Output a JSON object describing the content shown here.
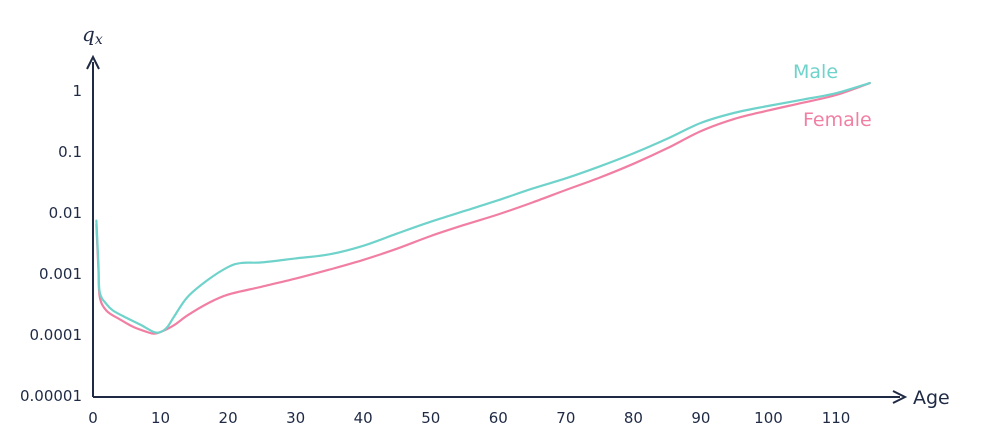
{
  "chart_data": {
    "type": "line",
    "title": "",
    "xlabel": "Age",
    "ylabel": {
      "main": "q",
      "sub": "x"
    },
    "y_scale": "log",
    "xlim": [
      0,
      115
    ],
    "ylim": [
      1e-05,
      1
    ],
    "x_ticks": [
      {
        "value": 0,
        "label": "0"
      },
      {
        "value": 10,
        "label": "10"
      },
      {
        "value": 20,
        "label": "20"
      },
      {
        "value": 30,
        "label": "30"
      },
      {
        "value": 40,
        "label": "40"
      },
      {
        "value": 50,
        "label": "50"
      },
      {
        "value": 60,
        "label": "60"
      },
      {
        "value": 70,
        "label": "70"
      },
      {
        "value": 80,
        "label": "80"
      },
      {
        "value": 90,
        "label": "90"
      },
      {
        "value": 100,
        "label": "100"
      },
      {
        "value": 110,
        "label": "110"
      }
    ],
    "y_ticks": [
      {
        "value": 1,
        "label": "1"
      },
      {
        "value": 0.1,
        "label": "0.1"
      },
      {
        "value": 0.01,
        "label": "0.01"
      },
      {
        "value": 0.001,
        "label": "0.001"
      },
      {
        "value": 0.0001,
        "label": "0.0001"
      },
      {
        "value": 1e-05,
        "label": "0.00001"
      }
    ],
    "grid": false,
    "legend": "inline labels at line ends",
    "series": [
      {
        "name": "Male",
        "color": "#6fd3cb",
        "points": [
          [
            0.5,
            0.0075
          ],
          [
            0.8,
            0.0015
          ],
          [
            1,
            0.0005
          ],
          [
            2,
            0.00032
          ],
          [
            3,
            0.00025
          ],
          [
            5,
            0.00019
          ],
          [
            7,
            0.000148
          ],
          [
            9,
            0.000112
          ],
          [
            10,
            0.000112
          ],
          [
            11,
            0.000135
          ],
          [
            12,
            0.0002
          ],
          [
            14,
            0.00042
          ],
          [
            17,
            0.0008
          ],
          [
            20,
            0.0013
          ],
          [
            22,
            0.00152
          ],
          [
            25,
            0.00155
          ],
          [
            30,
            0.0018
          ],
          [
            35,
            0.0021
          ],
          [
            40,
            0.0029
          ],
          [
            45,
            0.0046
          ],
          [
            50,
            0.0072
          ],
          [
            55,
            0.0108
          ],
          [
            60,
            0.0162
          ],
          [
            65,
            0.025
          ],
          [
            70,
            0.037
          ],
          [
            75,
            0.058
          ],
          [
            80,
            0.095
          ],
          [
            85,
            0.165
          ],
          [
            90,
            0.3
          ],
          [
            95,
            0.44
          ],
          [
            100,
            0.57
          ],
          [
            105,
            0.72
          ],
          [
            110,
            0.92
          ],
          [
            115,
            1.35
          ]
        ]
      },
      {
        "name": "Female",
        "color": "#f17fa3",
        "points": [
          [
            0.5,
            0.0065
          ],
          [
            0.8,
            0.0012
          ],
          [
            1,
            0.00042
          ],
          [
            2,
            0.00025
          ],
          [
            4,
            0.00018
          ],
          [
            6,
            0.000135
          ],
          [
            8,
            0.000112
          ],
          [
            9,
            0.000105
          ],
          [
            10,
            0.000112
          ],
          [
            12,
            0.000145
          ],
          [
            14,
            0.00021
          ],
          [
            17,
            0.00033
          ],
          [
            20,
            0.00046
          ],
          [
            25,
            0.00062
          ],
          [
            30,
            0.00084
          ],
          [
            35,
            0.00118
          ],
          [
            40,
            0.0017
          ],
          [
            45,
            0.0026
          ],
          [
            50,
            0.0042
          ],
          [
            55,
            0.0064
          ],
          [
            60,
            0.0095
          ],
          [
            65,
            0.0148
          ],
          [
            70,
            0.0238
          ],
          [
            75,
            0.038
          ],
          [
            80,
            0.064
          ],
          [
            85,
            0.115
          ],
          [
            90,
            0.22
          ],
          [
            95,
            0.35
          ],
          [
            100,
            0.48
          ],
          [
            105,
            0.64
          ],
          [
            110,
            0.86
          ],
          [
            115,
            1.35
          ]
        ]
      }
    ]
  }
}
